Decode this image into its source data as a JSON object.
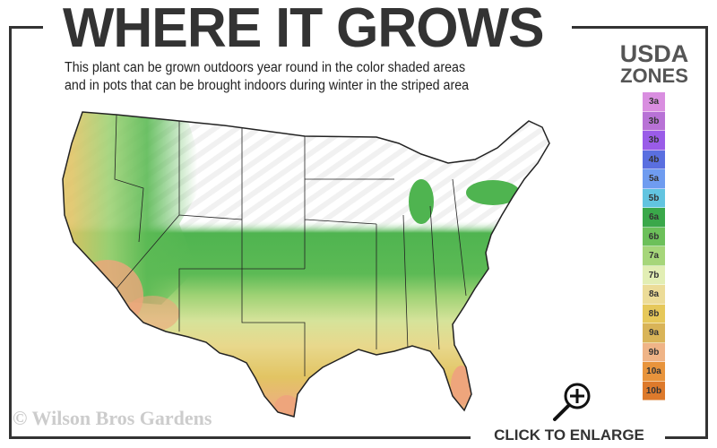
{
  "header": {
    "title": "WHERE IT GROWS",
    "subtitle_line1": "This plant can be grown outdoors year round in the color shaded areas",
    "subtitle_line2": "and in pots that can be brought indoors during winter in the striped area"
  },
  "legend": {
    "title_line1": "USDA",
    "title_line2": "ZONES",
    "zones": [
      {
        "label": "3a",
        "color": "#d98ee0"
      },
      {
        "label": "3b",
        "color": "#b872d6"
      },
      {
        "label": "3b",
        "color": "#9a5ce8"
      },
      {
        "label": "4b",
        "color": "#5a6fe0"
      },
      {
        "label": "5a",
        "color": "#6f9cf0"
      },
      {
        "label": "5b",
        "color": "#62c4e0"
      },
      {
        "label": "6a",
        "color": "#3aa84a"
      },
      {
        "label": "6b",
        "color": "#6cc05a"
      },
      {
        "label": "7a",
        "color": "#a6d67a"
      },
      {
        "label": "7b",
        "color": "#e2eeb4"
      },
      {
        "label": "8a",
        "color": "#ecdc98"
      },
      {
        "label": "8b",
        "color": "#e6c85a"
      },
      {
        "label": "9a",
        "color": "#d9b458"
      },
      {
        "label": "9b",
        "color": "#efb487"
      },
      {
        "label": "10a",
        "color": "#e8943c"
      },
      {
        "label": "10b",
        "color": "#dd7a2c"
      }
    ]
  },
  "footer": {
    "copyright": "© Wilson Bros Gardens",
    "enlarge_label": "CLICK TO ENLARGE",
    "enlarge_icon": "zoom-in-magnifier-icon"
  }
}
